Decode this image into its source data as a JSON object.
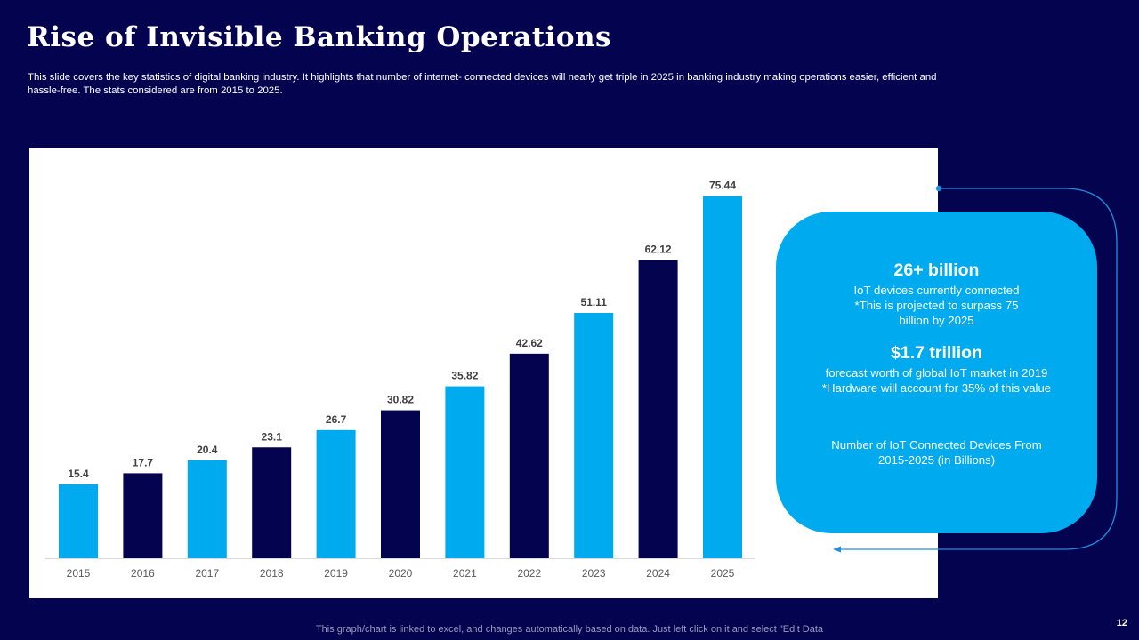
{
  "slide": {
    "title": "Rise of Invisible Banking Operations",
    "subtitle": "This slide covers the key statistics of digital banking industry. It highlights that number of internet- connected devices will nearly get triple in 2025 in banking industry making operations easier, efficient and hassle-free. The stats considered are from 2015 to 2025.",
    "footer_note": "This graph/chart is linked to excel,  and changes automatically based on data. Just left click on it and select \"Edit Data",
    "page_number": "12"
  },
  "stats": {
    "stat1_value": "26+ billion",
    "stat1_desc": "IoT devices currently connected *This is projected to surpass 75 billion by 2025",
    "stat2_value": "$1.7 trillion",
    "stat2_desc": "forecast worth of global IoT market in 2019 *Hardware will account for 35% of this value",
    "chart_caption": "Number of IoT Connected Devices From 2015-2025 (in Billions)"
  },
  "colors": {
    "background": "#04034f",
    "light_bar": "#00aaee",
    "dark_bar": "#04034f",
    "panel": "#ffffff"
  },
  "chart_data": {
    "type": "bar",
    "categories": [
      "2015",
      "2016",
      "2017",
      "2018",
      "2019",
      "2020",
      "2021",
      "2022",
      "2023",
      "2024",
      "2025"
    ],
    "values": [
      15.4,
      17.7,
      20.4,
      23.1,
      26.7,
      30.82,
      35.82,
      42.62,
      51.11,
      62.12,
      75.44
    ],
    "value_labels": [
      "15.4",
      "17.7",
      "20.4",
      "23.1",
      "26.7",
      "30.82",
      "35.82",
      "42.62",
      "51.11",
      "62.12",
      "75.44"
    ],
    "bar_colors": [
      "#00aaee",
      "#04034f",
      "#00aaee",
      "#04034f",
      "#00aaee",
      "#04034f",
      "#00aaee",
      "#04034f",
      "#00aaee",
      "#04034f",
      "#00aaee"
    ],
    "title": "",
    "xlabel": "",
    "ylabel": "",
    "ylim": [
      0,
      80
    ],
    "grid": false,
    "legend": "none"
  }
}
